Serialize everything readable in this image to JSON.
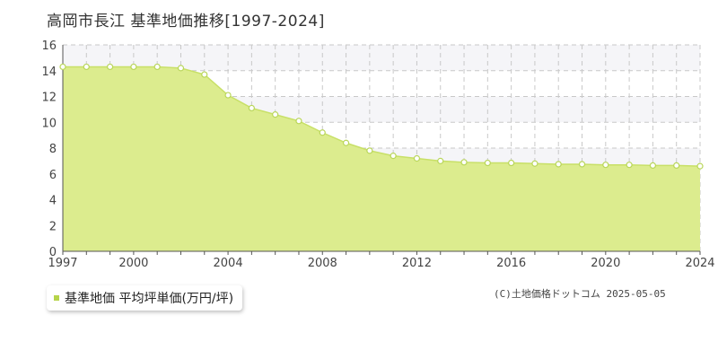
{
  "header": {
    "title": "高岡市長江  基準地価推移[1997-2024]"
  },
  "legend": {
    "label": "基準地価 平均坪単価(万円/坪)"
  },
  "footer": {
    "copyright": "(C)土地価格ドットコム 2025-05-05"
  },
  "colors": {
    "area_fill": "#dcec8e",
    "line": "#c8e067",
    "marker_stroke": "#b9d65a",
    "marker_fill": "#ffffff",
    "grid": "#c8c8c8",
    "band": "#f5f5f8",
    "legend_swatch": "#b6d44a"
  },
  "chart_data": {
    "type": "area",
    "title": "高岡市長江  基準地価推移[1997-2024]",
    "xlabel": "",
    "ylabel": "",
    "x": [
      1997,
      1998,
      1999,
      2000,
      2001,
      2002,
      2003,
      2004,
      2005,
      2006,
      2007,
      2008,
      2009,
      2010,
      2011,
      2012,
      2013,
      2014,
      2015,
      2016,
      2017,
      2018,
      2019,
      2020,
      2021,
      2022,
      2023,
      2024
    ],
    "series": [
      {
        "name": "基準地価 平均坪単価(万円/坪)",
        "values": [
          14.3,
          14.3,
          14.3,
          14.3,
          14.3,
          14.2,
          13.7,
          12.1,
          11.1,
          10.6,
          10.1,
          9.2,
          8.4,
          7.8,
          7.4,
          7.2,
          7.0,
          6.9,
          6.85,
          6.85,
          6.8,
          6.75,
          6.75,
          6.7,
          6.7,
          6.65,
          6.65,
          6.6
        ]
      }
    ],
    "xlim": [
      1997,
      2024
    ],
    "ylim": [
      0,
      16
    ],
    "x_ticks": [
      "1997",
      "2000",
      "2004",
      "2008",
      "2012",
      "2016",
      "2020",
      "2024"
    ],
    "y_ticks": [
      "0",
      "2",
      "4",
      "6",
      "8",
      "10",
      "12",
      "14",
      "16"
    ],
    "grid": true,
    "legend_position": "bottom-left"
  }
}
